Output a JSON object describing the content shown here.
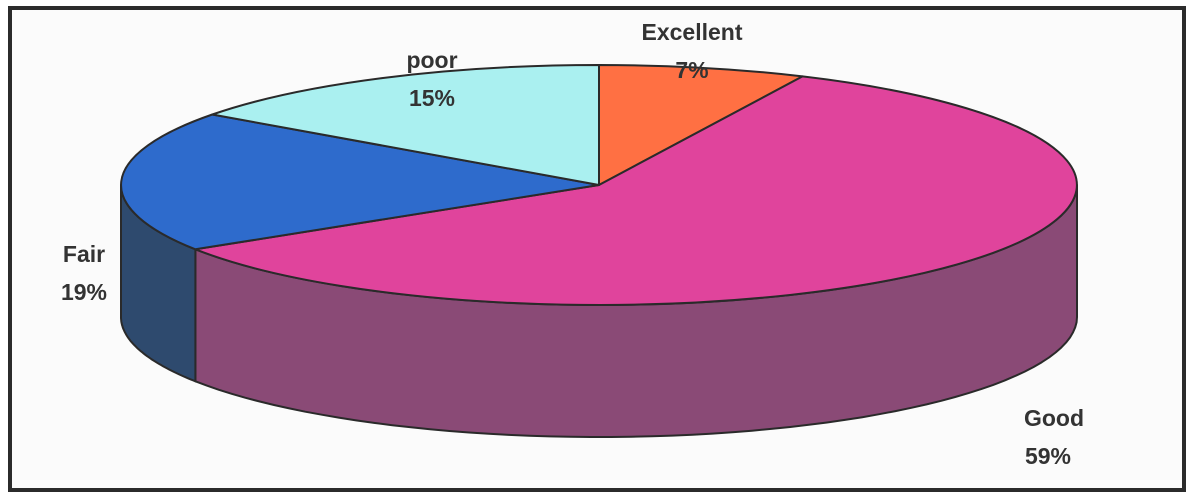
{
  "chart_data": {
    "type": "pie",
    "style": "3d",
    "title": "",
    "slices": [
      {
        "label": "Excellent",
        "value": 7,
        "value_label": "7%",
        "top_color": "#ff7043",
        "side_color": "#c0502f"
      },
      {
        "label": "Good",
        "value": 59,
        "value_label": "59%",
        "top_color": "#e0449c",
        "side_color": "#8a4a76"
      },
      {
        "label": "Fair",
        "value": 19,
        "value_label": "19%",
        "top_color": "#2e6bcc",
        "side_color": "#2e4a6e"
      },
      {
        "label": "poor",
        "value": 15,
        "value_label": "15%",
        "top_color": "#aaf0f0",
        "side_color": "#7fbcbc"
      }
    ],
    "legend": "none",
    "outline_color": "#2a2a2a"
  }
}
